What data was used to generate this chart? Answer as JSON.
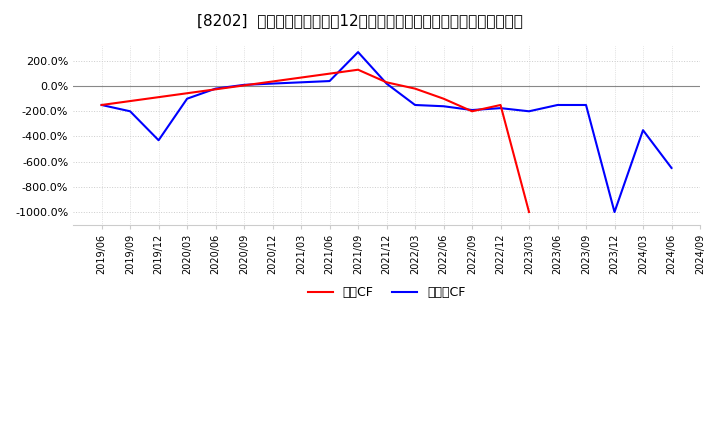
{
  "title": "[8202]  キャッシュフローの12か月移動合計の対前年同期増減率の推移",
  "title_fontsize": 11,
  "ylim": [
    -1100,
    320
  ],
  "yticks": [
    200,
    0,
    -200,
    -400,
    -600,
    -800,
    -1000
  ],
  "yticklabels": [
    "200.0%",
    "0.0%",
    "-200.0%",
    "-400.0%",
    "-600.0%",
    "-800.0%",
    "-1000.0%"
  ],
  "background_color": "#ffffff",
  "legend_entries": [
    "営業CF",
    "フリーCF"
  ],
  "x_labels": [
    "2019/06",
    "2019/09",
    "2019/12",
    "2020/03",
    "2020/06",
    "2020/09",
    "2020/12",
    "2021/03",
    "2021/06",
    "2021/09",
    "2021/12",
    "2022/03",
    "2022/06",
    "2022/09",
    "2022/12",
    "2023/03",
    "2023/06",
    "2023/09",
    "2023/12",
    "2024/03",
    "2024/06",
    "2024/09"
  ],
  "operating_cf": [
    -150,
    null,
    null,
    null,
    null,
    null,
    null,
    null,
    null,
    130,
    30,
    -20,
    -100,
    -200,
    -150,
    -1000,
    null,
    null,
    null,
    null,
    null,
    null
  ],
  "free_cf": [
    -150,
    -200,
    -430,
    -100,
    -20,
    10,
    20,
    30,
    40,
    270,
    20,
    -150,
    -160,
    -190,
    -175,
    -200,
    -150,
    -150,
    -1000,
    -350,
    -650,
    null
  ],
  "operating_color": "#ff0000",
  "free_color": "#0000ff",
  "line_width": 1.5,
  "grid_color": "#cccccc",
  "grid_style": "dotted"
}
